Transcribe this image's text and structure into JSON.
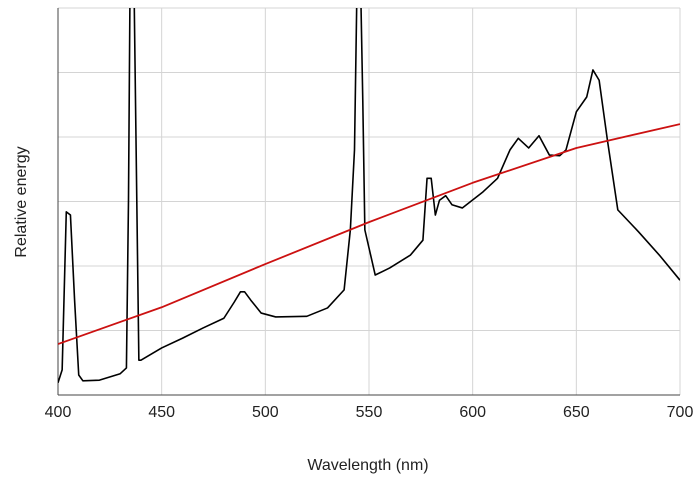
{
  "chart_data": {
    "type": "line",
    "xlabel": "Wavelength (nm)",
    "ylabel": "Relative energy",
    "xlim": [
      400,
      700
    ],
    "xticks": [
      400,
      450,
      500,
      550,
      600,
      650,
      700
    ],
    "ylim": [
      0,
      6
    ],
    "yticks": [
      0,
      1,
      2,
      3,
      4,
      5,
      6
    ],
    "grid": true,
    "series": [
      {
        "color": "#000000",
        "x": [
          400,
          402,
          404,
          406,
          408,
          410,
          412,
          420,
          430,
          433,
          434,
          435,
          436,
          438,
          439,
          440,
          450,
          460,
          470,
          480,
          485,
          488,
          490,
          493,
          498,
          505,
          520,
          530,
          538,
          541,
          543,
          545,
          547,
          548,
          550,
          553,
          560,
          570,
          576,
          578,
          580,
          582,
          584,
          587,
          590,
          595,
          605,
          612,
          618,
          622,
          627,
          632,
          637,
          642,
          645,
          650,
          655,
          658,
          661,
          665,
          670,
          680,
          690,
          700
        ],
        "values": [
          0.19,
          0.39,
          2.84,
          2.79,
          1.47,
          0.31,
          0.22,
          0.23,
          0.33,
          0.42,
          3.02,
          7.5,
          8,
          3.02,
          0.54,
          0.54,
          0.73,
          0.88,
          1.04,
          1.19,
          1.44,
          1.6,
          1.6,
          1.47,
          1.27,
          1.21,
          1.22,
          1.35,
          1.63,
          2.56,
          3.8,
          8,
          4.57,
          2.56,
          2.28,
          1.86,
          1.97,
          2.17,
          2.4,
          3.36,
          3.36,
          2.79,
          3.02,
          3.09,
          2.95,
          2.9,
          3.15,
          3.36,
          3.8,
          3.98,
          3.83,
          4.02,
          3.72,
          3.71,
          3.8,
          4.39,
          4.62,
          5.04,
          4.88,
          3.95,
          2.87,
          2.53,
          2.17,
          1.78
        ]
      },
      {
        "color": "#cc1111",
        "x": [
          400,
          450,
          500,
          550,
          600,
          650,
          700
        ],
        "values": [
          0.79,
          1.36,
          2.03,
          2.68,
          3.29,
          3.83,
          4.2
        ]
      }
    ]
  }
}
